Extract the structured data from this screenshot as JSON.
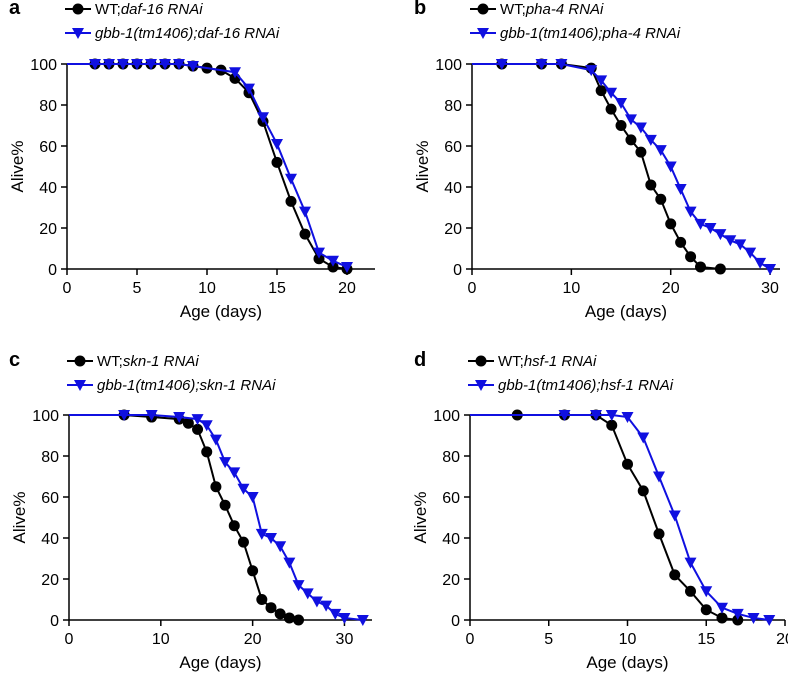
{
  "colors": {
    "wt": "#000000",
    "mut": "#1010e0"
  },
  "chart_data": [
    {
      "type": "line",
      "panel": "a",
      "xlabel": "Age (days)",
      "ylabel": "Alive%",
      "xlim": [
        0,
        22
      ],
      "ylim": [
        0,
        100
      ],
      "xticks": [
        0,
        5,
        10,
        15,
        20
      ],
      "yticks": [
        0,
        20,
        40,
        60,
        80,
        100
      ],
      "legend": [
        {
          "prefix": "WT;",
          "italic": "daf-16 RNAi"
        },
        {
          "prefix": "",
          "italic": "gbb-1(tm1406);daf-16 RNAi"
        }
      ],
      "series": [
        {
          "name": "WT;daf-16 RNAi",
          "marker": "circle",
          "x": [
            2,
            3,
            4,
            5,
            6,
            7,
            8,
            9,
            10,
            11,
            12,
            13,
            14,
            15,
            16,
            17,
            18,
            19,
            20
          ],
          "y": [
            100,
            100,
            100,
            100,
            100,
            100,
            100,
            99,
            98,
            97,
            93,
            86,
            72,
            52,
            33,
            17,
            5,
            1,
            0
          ]
        },
        {
          "name": "gbb-1(tm1406);daf-16 RNAi",
          "marker": "triangle-down",
          "x": [
            2,
            3,
            4,
            5,
            6,
            7,
            8,
            9,
            12,
            13,
            14,
            15,
            16,
            17,
            18,
            19,
            20
          ],
          "y": [
            100,
            100,
            100,
            100,
            100,
            100,
            100,
            99,
            96,
            88,
            74,
            61,
            44,
            28,
            8,
            4,
            1
          ]
        }
      ]
    },
    {
      "type": "line",
      "panel": "b",
      "xlabel": "Age (days)",
      "ylabel": "Alive%",
      "xlim": [
        0,
        31
      ],
      "ylim": [
        0,
        100
      ],
      "xticks": [
        0,
        10,
        20,
        30
      ],
      "yticks": [
        0,
        20,
        40,
        60,
        80,
        100
      ],
      "legend": [
        {
          "prefix": "WT;",
          "italic": "pha-4 RNAi"
        },
        {
          "prefix": "",
          "italic": "gbb-1(tm1406);pha-4 RNAi"
        }
      ],
      "series": [
        {
          "name": "WT;pha-4 RNAi",
          "marker": "circle",
          "x": [
            3,
            7,
            9,
            12,
            13,
            14,
            15,
            16,
            17,
            18,
            19,
            20,
            21,
            22,
            23,
            25
          ],
          "y": [
            100,
            100,
            100,
            98,
            87,
            78,
            70,
            63,
            57,
            41,
            34,
            22,
            13,
            6,
            1,
            0
          ]
        },
        {
          "name": "gbb-1(tm1406);pha-4 RNAi",
          "marker": "triangle-down",
          "x": [
            3,
            7,
            9,
            12,
            13,
            14,
            15,
            16,
            17,
            18,
            19,
            20,
            21,
            22,
            23,
            24,
            25,
            26,
            27,
            28,
            29,
            30
          ],
          "y": [
            100,
            100,
            100,
            97,
            92,
            86,
            81,
            73,
            69,
            63,
            58,
            50,
            39,
            28,
            22,
            20,
            17,
            14,
            12,
            8,
            3,
            0
          ]
        }
      ]
    },
    {
      "type": "line",
      "panel": "c",
      "xlabel": "Age (days)",
      "ylabel": "Alive%",
      "xlim": [
        0,
        33
      ],
      "ylim": [
        0,
        100
      ],
      "xticks": [
        0,
        10,
        20,
        30
      ],
      "yticks": [
        0,
        20,
        40,
        60,
        80,
        100
      ],
      "legend": [
        {
          "prefix": "WT;",
          "italic": "skn-1 RNAi"
        },
        {
          "prefix": "",
          "italic": "gbb-1(tm1406);skn-1 RNAi"
        }
      ],
      "series": [
        {
          "name": "WT;skn-1 RNAi",
          "marker": "circle",
          "x": [
            6,
            9,
            12,
            13,
            14,
            15,
            16,
            17,
            18,
            19,
            20,
            21,
            22,
            23,
            24,
            25
          ],
          "y": [
            100,
            99,
            98,
            96,
            93,
            82,
            65,
            56,
            46,
            38,
            24,
            10,
            6,
            3,
            1,
            0
          ]
        },
        {
          "name": "gbb-1(tm1406);skn-1 RNAi",
          "marker": "triangle-down",
          "x": [
            6,
            9,
            12,
            14,
            15,
            16,
            17,
            18,
            19,
            20,
            21,
            22,
            23,
            24,
            25,
            26,
            27,
            28,
            29,
            30,
            32
          ],
          "y": [
            100,
            100,
            99,
            98,
            95,
            88,
            77,
            72,
            64,
            60,
            42,
            40,
            36,
            28,
            17,
            13,
            9,
            7,
            3,
            1,
            0
          ]
        }
      ]
    },
    {
      "type": "line",
      "panel": "d",
      "xlabel": "Age (days)",
      "ylabel": "Alive%",
      "xlim": [
        0,
        20
      ],
      "ylim": [
        0,
        100
      ],
      "xticks": [
        0,
        5,
        10,
        15,
        20
      ],
      "yticks": [
        0,
        20,
        40,
        60,
        80,
        100
      ],
      "legend": [
        {
          "prefix": "WT;",
          "italic": "hsf-1 RNAi"
        },
        {
          "prefix": "",
          "italic": "gbb-1(tm1406);hsf-1 RNAi"
        }
      ],
      "series": [
        {
          "name": "WT;hsf-1 RNAi",
          "marker": "circle",
          "x": [
            3,
            6,
            8,
            9,
            10,
            11,
            12,
            13,
            14,
            15,
            16,
            17
          ],
          "y": [
            100,
            100,
            100,
            95,
            76,
            63,
            42,
            22,
            14,
            5,
            1,
            0
          ]
        },
        {
          "name": "gbb-1(tm1406);hsf-1 RNAi",
          "marker": "triangle-down",
          "x": [
            6,
            8,
            9,
            10,
            11,
            12,
            13,
            14,
            15,
            16,
            17,
            18,
            19
          ],
          "y": [
            100,
            100,
            100,
            99,
            89,
            70,
            51,
            28,
            14,
            6,
            3,
            1,
            0
          ]
        }
      ]
    }
  ]
}
